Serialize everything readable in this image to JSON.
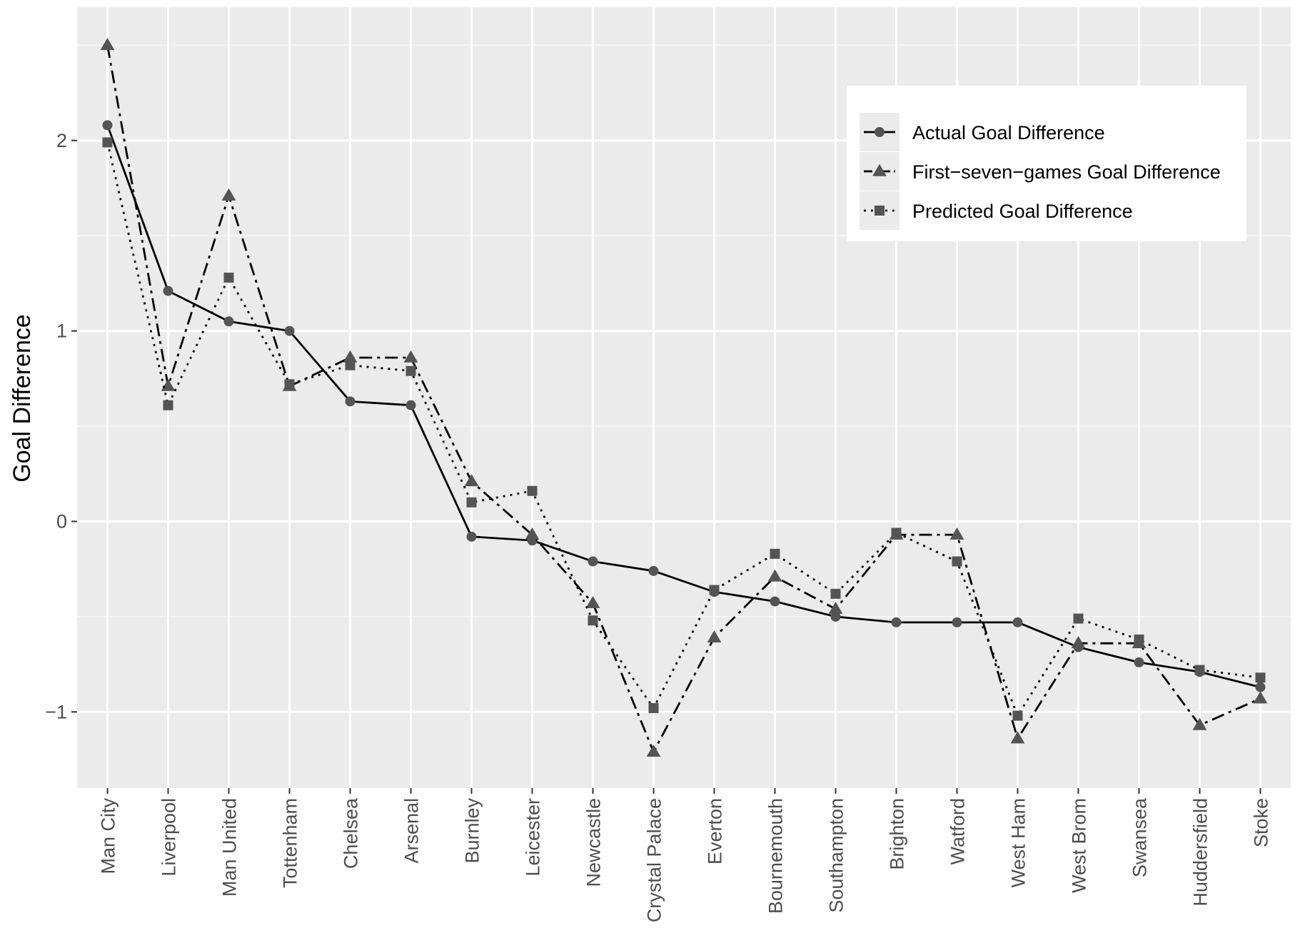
{
  "chart_data": {
    "type": "line",
    "title": "",
    "xlabel": "",
    "ylabel": "Goal Difference",
    "ylim": [
      -1.4,
      2.7
    ],
    "yticks": [
      -1,
      0,
      1,
      2
    ],
    "ytick_labels": [
      "−1",
      "0",
      "1",
      "2"
    ],
    "grid": true,
    "legend_position": "top-right",
    "categories": [
      "Man City",
      "Liverpool",
      "Man United",
      "Tottenham",
      "Chelsea",
      "Arsenal",
      "Burnley",
      "Leicester",
      "Newcastle",
      "Crystal Palace",
      "Everton",
      "Bournemouth",
      "Southampton",
      "Brighton",
      "Watford",
      "West Ham",
      "West Brom",
      "Swansea",
      "Huddersfield",
      "Stoke"
    ],
    "series": [
      {
        "name": "Actual Goal Difference",
        "line_style": "solid",
        "marker": "circle",
        "values": [
          2.08,
          1.21,
          1.05,
          1.0,
          0.63,
          0.61,
          -0.08,
          -0.1,
          -0.21,
          -0.26,
          -0.37,
          -0.42,
          -0.5,
          -0.53,
          -0.53,
          -0.53,
          -0.66,
          -0.74,
          -0.79,
          -0.87
        ]
      },
      {
        "name": "First−seven−games Goal Difference",
        "line_style": "dashdot",
        "marker": "triangle",
        "values": [
          2.5,
          0.71,
          1.71,
          0.71,
          0.86,
          0.86,
          0.21,
          -0.07,
          -0.43,
          -1.21,
          -0.61,
          -0.29,
          -0.46,
          -0.07,
          -0.07,
          -1.14,
          -0.64,
          -0.64,
          -1.07,
          -0.93
        ]
      },
      {
        "name": "Predicted Goal Difference",
        "line_style": "dotted",
        "marker": "square",
        "values": [
          1.99,
          0.61,
          1.28,
          0.72,
          0.82,
          0.79,
          0.1,
          0.16,
          -0.52,
          -0.98,
          -0.36,
          -0.17,
          -0.38,
          -0.06,
          -0.21,
          -1.02,
          -0.51,
          -0.62,
          -0.78,
          -0.82
        ]
      }
    ]
  }
}
